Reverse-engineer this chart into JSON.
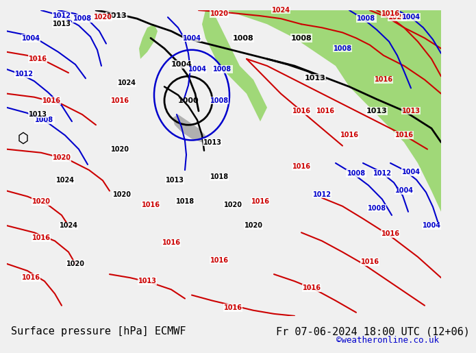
{
  "title_left": "Surface pressure [hPa] ECMWF",
  "title_right": "Fr 07-06-2024 18:00 UTC (12+06)",
  "copyright": "©weatheronline.co.uk",
  "bg_color": "#f0f0f0",
  "bottom_bar_color": "#e8e8e8",
  "font_size_title": 11,
  "font_size_copyright": 9,
  "map_bg_ocean": "#c8d8f0",
  "map_bg_land_green": "#a8d888",
  "map_bg_land_gray": "#b8b8b8",
  "isobar_colors": {
    "black": "#000000",
    "red": "#cc0000",
    "blue": "#0000cc"
  }
}
